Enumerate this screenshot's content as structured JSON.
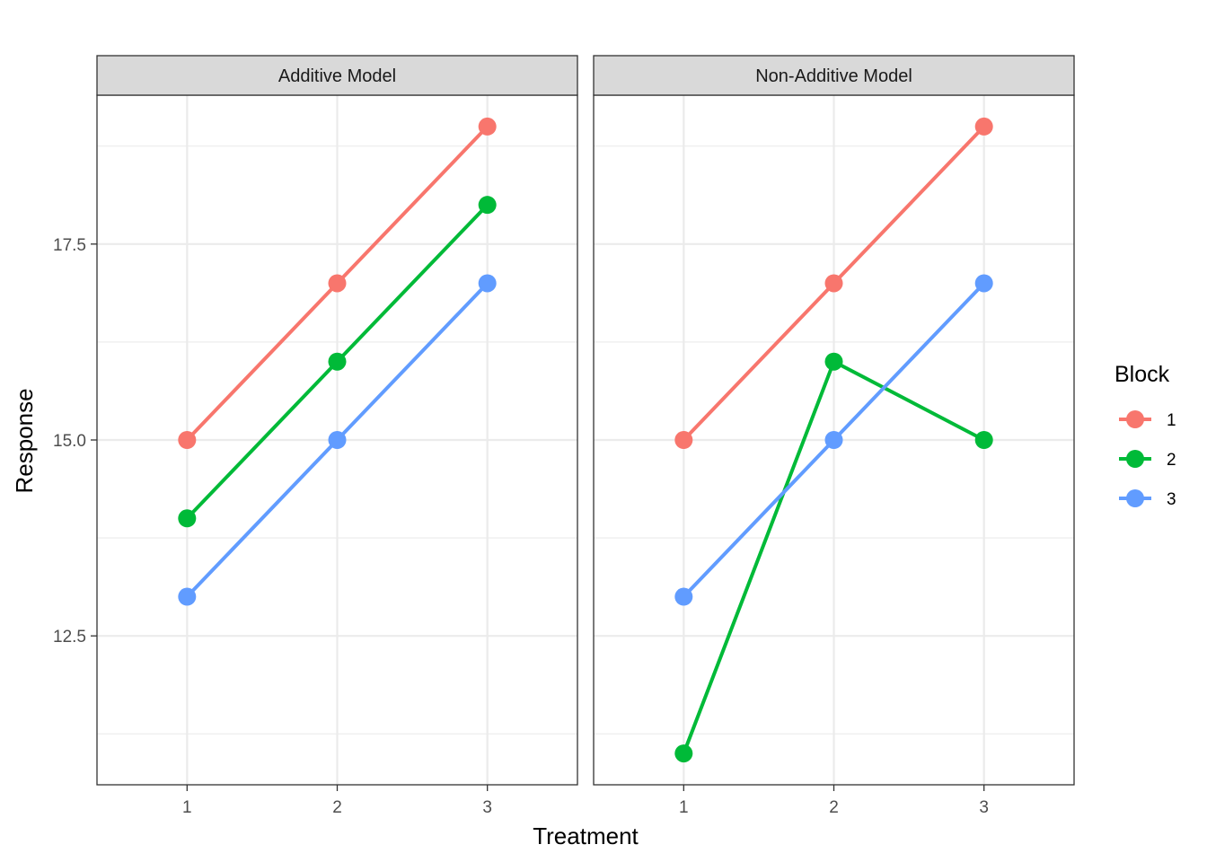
{
  "chart_data": {
    "type": "line",
    "xlabel": "Treatment",
    "ylabel": "Response",
    "x_categories": [
      "1",
      "2",
      "3"
    ],
    "y_ticks": [
      12.5,
      15.0,
      17.5
    ],
    "y_tick_labels": [
      "12.5",
      "15.0",
      "17.5"
    ],
    "ylim": [
      10.6,
      19.4
    ],
    "grid": true,
    "legend": {
      "title": "Block",
      "position": "right",
      "entries": [
        {
          "label": "1",
          "color": "#F8766D"
        },
        {
          "label": "2",
          "color": "#00BA38"
        },
        {
          "label": "3",
          "color": "#619CFF"
        }
      ]
    },
    "panels": [
      {
        "title": "Additive Model",
        "series": [
          {
            "name": "1",
            "color": "#F8766D",
            "values": [
              15,
              17,
              19
            ]
          },
          {
            "name": "2",
            "color": "#00BA38",
            "values": [
              14,
              16,
              18
            ]
          },
          {
            "name": "3",
            "color": "#619CFF",
            "values": [
              13,
              15,
              17
            ]
          }
        ]
      },
      {
        "title": "Non-Additive Model",
        "series": [
          {
            "name": "1",
            "color": "#F8766D",
            "values": [
              15,
              17,
              19
            ]
          },
          {
            "name": "2",
            "color": "#00BA38",
            "values": [
              11,
              16,
              15
            ]
          },
          {
            "name": "3",
            "color": "#619CFF",
            "values": [
              13,
              15,
              17
            ]
          }
        ]
      }
    ]
  }
}
